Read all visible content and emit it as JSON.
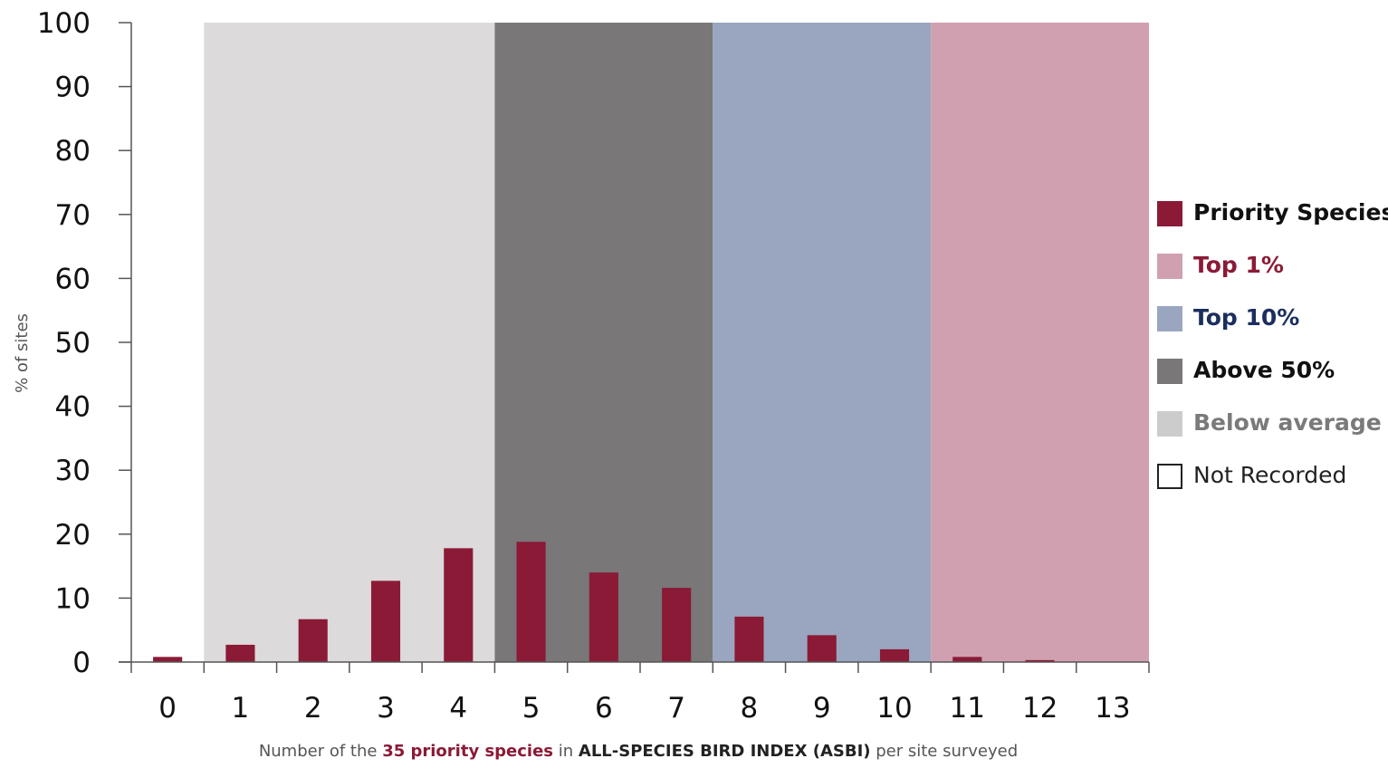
{
  "chart_data": {
    "type": "bar",
    "title": "",
    "ylabel": "% of sites",
    "xlabel": {
      "prefix": "Number of the ",
      "highlight_species": "35 priority species",
      "middle": " in ",
      "highlight_index": "ALL-SPECIES BIRD INDEX (ASBI)",
      "suffix": " per site surveyed"
    },
    "categories": [
      "0",
      "1",
      "2",
      "3",
      "4",
      "5",
      "6",
      "7",
      "8",
      "9",
      "10",
      "11",
      "12",
      "13"
    ],
    "series": [
      {
        "name": "Priority Species",
        "color": "#8b1a36",
        "values": [
          0.8,
          2.7,
          6.7,
          12.7,
          17.8,
          18.8,
          14.0,
          11.6,
          7.1,
          4.2,
          2.0,
          0.8,
          0.3,
          0
        ]
      }
    ],
    "bands": [
      {
        "label": "Below average",
        "from": 1,
        "to": 4,
        "color": "#dcdadb"
      },
      {
        "label": "Above 50%",
        "from": 5,
        "to": 7,
        "color": "#797778"
      },
      {
        "label": "Top 10%",
        "from": 8,
        "to": 10,
        "color": "#9aa6c0"
      },
      {
        "label": "Top 1%",
        "from": 11,
        "to": 13,
        "color": "#d0a0b1"
      }
    ],
    "ylim": [
      0,
      100
    ],
    "yticks": [
      0,
      10,
      20,
      30,
      40,
      50,
      60,
      70,
      80,
      90,
      100
    ],
    "grid": false,
    "legend_position": "right"
  },
  "legend": [
    {
      "label": "Priority Species",
      "swatch": "#8b1a36",
      "text_color": "#111111",
      "bold": true,
      "outlined": false
    },
    {
      "label": "Top 1%",
      "swatch": "#d0a0b1",
      "text_color": "#8b1a36",
      "bold": true,
      "outlined": false
    },
    {
      "label": "Top 10%",
      "swatch": "#9aa6c0",
      "text_color": "#1b2f5e",
      "bold": true,
      "outlined": false
    },
    {
      "label": "Above 50%",
      "swatch": "#797778",
      "text_color": "#111111",
      "bold": true,
      "outlined": false
    },
    {
      "label": "Below average",
      "swatch": "#cccccc",
      "text_color": "#7a7a7a",
      "bold": true,
      "outlined": false
    },
    {
      "label": "Not Recorded",
      "swatch": "#ffffff",
      "text_color": "#222222",
      "bold": false,
      "outlined": true
    }
  ]
}
